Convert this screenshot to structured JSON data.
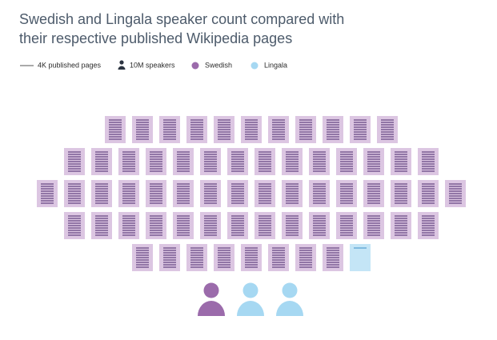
{
  "chart_data": {
    "type": "pictogram",
    "title": "Swedish and Lingala speaker count compared with their respective published Wikipedia pages",
    "legend": {
      "pages": "4K published pages",
      "speakers": "10M speakers"
    },
    "series": [
      {
        "name": "Swedish",
        "color": "#9b6bab",
        "page_color": "#dcc6e2",
        "line_color": "#6b4a86",
        "pages": 63,
        "speakers": 1
      },
      {
        "name": "Lingala",
        "color": "#a6d8f2",
        "page_color": "#c4e5f6",
        "line_color": "#5aa3d3",
        "pages": 0.1,
        "speakers": 2
      }
    ]
  }
}
